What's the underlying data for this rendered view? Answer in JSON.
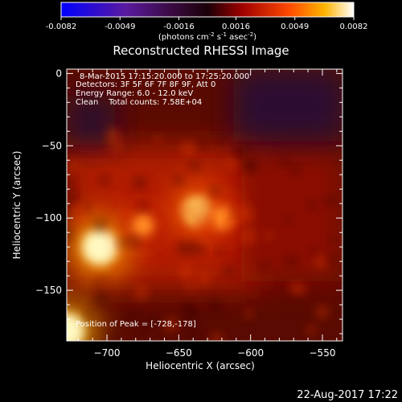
{
  "chart_data": {
    "type": "heatmap",
    "title": "Reconstructed RHESSI Image",
    "xlabel": "Heliocentric X (arcsec)",
    "ylabel": "Heliocentric Y (arcsec)",
    "xlim": [
      -728,
      -536
    ],
    "ylim": [
      -185,
      3
    ],
    "x_ticks": [
      -700,
      -650,
      -600,
      -550
    ],
    "y_ticks": [
      0,
      -50,
      -100,
      -150
    ],
    "colorbar": {
      "range": [
        -0.0082,
        0.0082
      ],
      "ticks": [
        "-0.0082",
        "-0.0049",
        "-0.0016",
        "0.0016",
        "0.0049",
        "0.0082"
      ],
      "units_label": "(photons cm",
      "units_sup1": "-2",
      "units_mid": " s",
      "units_sup2": "-1",
      "units_mid2": " asec",
      "units_sup3": "-2",
      "units_end": ")"
    },
    "sources": [
      {
        "x": -705,
        "y": -120,
        "intensity": 0.0082
      },
      {
        "x": -637,
        "y": -95,
        "intensity": 0.0065
      },
      {
        "x": -675,
        "y": -105,
        "intensity": 0.0035
      },
      {
        "x": -620,
        "y": -100,
        "intensity": 0.004
      },
      {
        "x": -728,
        "y": -178,
        "intensity": 0.0082
      }
    ],
    "annotations": {
      "time": "8-Mar-2015 17:15:20.000 to 17:25:20.000",
      "detectors": "Detectors: 3F 5F 6F 7F 8F 9F, Att 0",
      "energy": "Energy Range: 6.0 - 12.0 keV",
      "clean": "Clean    Total counts: 7.58E+04",
      "peak": "Position of Peak = [-728,-178]"
    }
  },
  "footer": {
    "timestamp": "22-Aug-2017 17:22"
  },
  "colors": {
    "background": "#000000",
    "text": "#ffffff"
  }
}
